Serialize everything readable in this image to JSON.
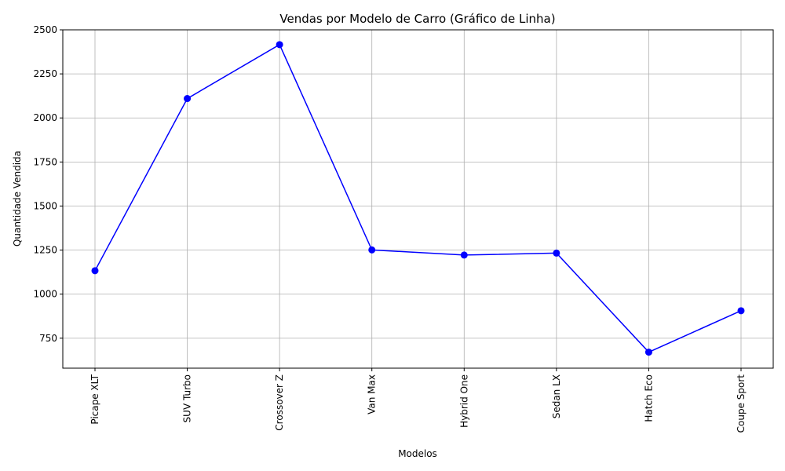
{
  "chart_data": {
    "type": "line",
    "title": "Vendas por Modelo de Carro (Gráfico de Linha)",
    "xlabel": "Modelos",
    "ylabel": "Quantidade Vendida",
    "categories": [
      "Picape XLT",
      "SUV Turbo",
      "Crossover Z",
      "Van Max",
      "Hybrid One",
      "Sedan LX",
      "Hatch Eco",
      "Coupe Sport"
    ],
    "series": [
      {
        "values": [
          1133,
          2110,
          2416,
          1251,
          1222,
          1233,
          671,
          906
        ],
        "color": "#0000ff",
        "marker": "circle"
      }
    ],
    "ylim": [
      580,
      2500
    ],
    "yticks": [
      750,
      1000,
      1250,
      1500,
      1750,
      2000,
      2250,
      2500
    ],
    "grid": true,
    "x_tick_rotation": "vertical"
  }
}
